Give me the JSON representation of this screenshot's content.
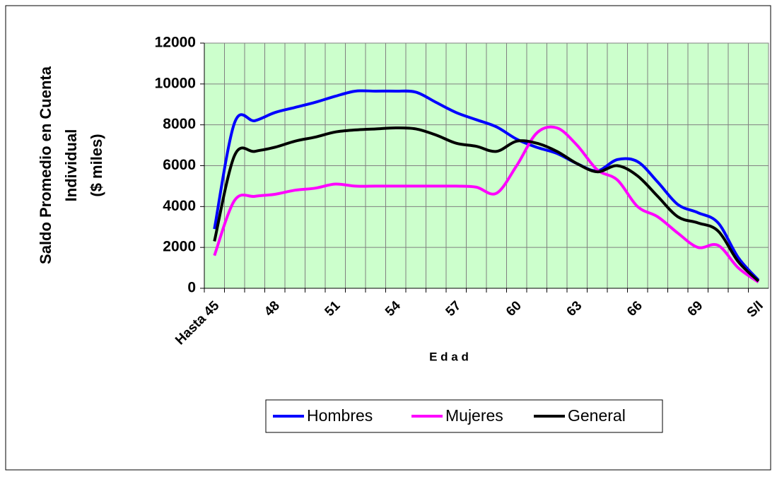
{
  "chart_data": {
    "type": "line",
    "xlabel": "E d a d",
    "ylabel": [
      "Saldo Promedio en Cuenta",
      "Individual",
      "($ miles)"
    ],
    "categories": [
      "Hasta 45",
      null,
      null,
      "48",
      null,
      null,
      "51",
      null,
      null,
      "54",
      null,
      null,
      "57",
      null,
      null,
      "60",
      null,
      null,
      "63",
      null,
      null,
      "66",
      null,
      null,
      "69",
      null,
      null,
      "S/I"
    ],
    "series": [
      {
        "name": "Hombres",
        "color": "#0000ff",
        "values": [
          2900,
          8100,
          8200,
          8600,
          8850,
          9100,
          9400,
          9650,
          9650,
          9650,
          9600,
          9100,
          8600,
          8250,
          7900,
          7300,
          6900,
          6600,
          6100,
          5750,
          6300,
          6200,
          5200,
          4100,
          3700,
          3200,
          1500,
          400
        ]
      },
      {
        "name": "Mujeres",
        "color": "#ff00ff",
        "values": [
          1600,
          4300,
          4500,
          4600,
          4800,
          4900,
          5100,
          5000,
          5000,
          5000,
          5000,
          5000,
          5000,
          4950,
          4650,
          6000,
          7600,
          7850,
          7000,
          5800,
          5300,
          4000,
          3500,
          2700,
          2000,
          2100,
          1000,
          300
        ]
      },
      {
        "name": "General",
        "color": "#000000",
        "values": [
          2300,
          6500,
          6700,
          6900,
          7200,
          7400,
          7650,
          7750,
          7800,
          7850,
          7800,
          7500,
          7100,
          6950,
          6700,
          7200,
          7100,
          6700,
          6100,
          5700,
          6000,
          5500,
          4500,
          3500,
          3200,
          2800,
          1300,
          350
        ]
      }
    ],
    "ylim": [
      0,
      12000
    ],
    "yticks": [
      0,
      2000,
      4000,
      6000,
      8000,
      10000,
      12000
    ],
    "grid": true,
    "legend": "bottom"
  }
}
